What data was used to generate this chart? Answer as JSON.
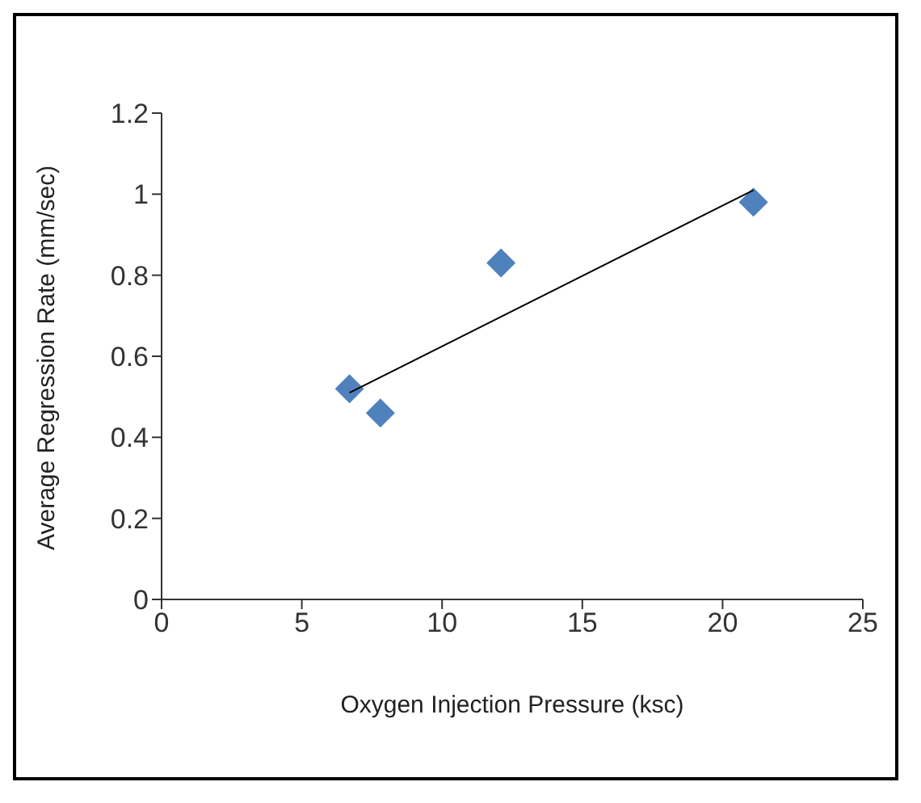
{
  "chart_data": {
    "type": "scatter",
    "xlabel": "Oxygen Injection Pressure (ksc)",
    "ylabel": "Average Regression Rate (mm/sec)",
    "xlim": [
      0,
      25
    ],
    "xticks": [
      0,
      5,
      10,
      15,
      20,
      25
    ],
    "ylim": [
      0,
      1.2
    ],
    "yticks": [
      0,
      0.2,
      0.4,
      0.6,
      0.8,
      1,
      1.2
    ],
    "grid": false,
    "legend": false,
    "marker": "diamond",
    "series": [
      {
        "color": "#4f81bd",
        "x": [
          6.7,
          7.8,
          12.1,
          21.1
        ],
        "values": [
          0.52,
          0.46,
          0.83,
          0.98
        ]
      },
      {
        "type": "line",
        "color": "#000000",
        "x": [
          6.7,
          21.1
        ],
        "values": [
          0.51,
          1.01
        ],
        "marker": "none"
      }
    ]
  }
}
